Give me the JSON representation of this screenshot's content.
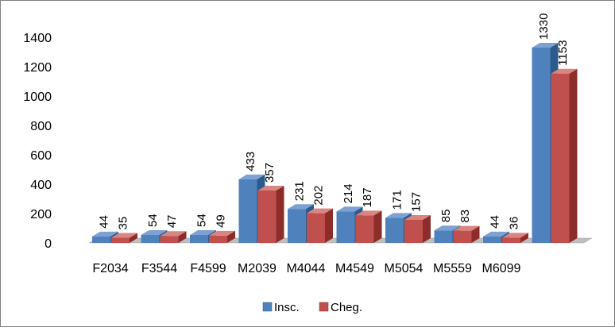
{
  "chart_data": {
    "type": "bar",
    "categories": [
      "F2034",
      "F3544",
      "F4599",
      "M2039",
      "M4044",
      "M4549",
      "M5054",
      "M5559",
      "M6099",
      ""
    ],
    "series": [
      {
        "name": "Insc.",
        "values": [
          44,
          54,
          54,
          433,
          231,
          214,
          171,
          85,
          44,
          1330
        ]
      },
      {
        "name": "Cheg.",
        "values": [
          35,
          47,
          49,
          357,
          202,
          187,
          157,
          83,
          36,
          1153
        ]
      }
    ],
    "ylim": [
      0,
      1400
    ],
    "yticks": [
      "0",
      "200",
      "400",
      "600",
      "800",
      "1000",
      "1200",
      "1400"
    ],
    "legend_position": "bottom",
    "grid": false,
    "style": "3d-clustered-column"
  },
  "colors": {
    "insc": "#4F81BD",
    "insc_side": "#2D5A8C",
    "insc_top": "#7CA2D4",
    "cheg": "#C0504D",
    "cheg_side": "#8C2D2A",
    "cheg_top": "#D98683",
    "floor": "#BFBFBF",
    "frame": "#808080"
  }
}
